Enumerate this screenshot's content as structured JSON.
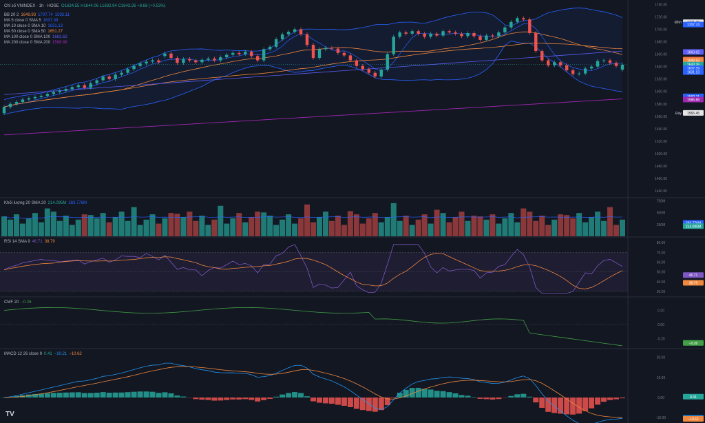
{
  "header": {
    "symbol": "Chỉ số VNINDEX · 1h · HOSE",
    "open": "O1634.55",
    "high": "H1644.06",
    "low": "L1632.94",
    "close": "C1643.26",
    "change": "+8.68 (+0.53%)"
  },
  "main_legend": [
    {
      "label": "BB 20 2",
      "values": [
        "1649.93",
        "1707.74",
        "1592.11"
      ],
      "colors": [
        "#f0883e",
        "#2962ff",
        "#2962ff"
      ]
    },
    {
      "label": "MA 5 close 0 SMA 5",
      "values": [
        "1637.39"
      ],
      "colors": [
        "#2962ff"
      ]
    },
    {
      "label": "MA 10 close 0 SMA 10",
      "values": [
        "1631.13"
      ],
      "colors": [
        "#2962ff"
      ]
    },
    {
      "label": "MA 50 close 0 SMA 50",
      "values": [
        "1651.27"
      ],
      "colors": [
        "#f0883e"
      ]
    },
    {
      "label": "MA 100 close 0 SMA 100",
      "values": [
        "1663.62"
      ],
      "colors": [
        "#5b5ef6"
      ]
    },
    {
      "label": "MA 200 close 0 SMA 200",
      "values": [
        "1586.88"
      ],
      "colors": [
        "#9c27b0"
      ]
    }
  ],
  "volume_legend": {
    "label": "Khối lượng 20 SMA 20",
    "v1": "214.095M",
    "v2": "283.776M"
  },
  "rsi_legend": {
    "label": "RSI 14 SMA 9",
    "v1": "46.71",
    "v2": "38.79"
  },
  "cmf_legend": {
    "label": "CMF 20",
    "v1": "−0.26"
  },
  "macd_legend": {
    "label": "MACD 12 26 close 9",
    "v1": "0.41",
    "v2": "−10.21",
    "v3": "−10.62"
  },
  "colors": {
    "up": "#26a69a",
    "down": "#ef5350",
    "bb": "#2962ff",
    "orange": "#f0883e",
    "purple": "#9c27b0",
    "ma100": "#5b5ef6",
    "rsi": "#7e57c2",
    "cmf": "#43a047",
    "macd": "#2196f3"
  },
  "chart_data": [
    {
      "type": "candlestick",
      "name": "VNINDEX 1h",
      "ylim": [
        1430,
        1745
      ],
      "yticks": [
        "1740.00",
        "1720.00",
        "1700.00",
        "1680.00",
        "1660.00",
        "1640.00",
        "1620.00",
        "1600.00",
        "1580.00",
        "1560.00",
        "1540.00",
        "1520.00",
        "1500.00",
        "1480.00",
        "1460.00",
        "1440.00"
      ],
      "close": [
        1575,
        1580,
        1583,
        1587,
        1589,
        1591,
        1593,
        1596,
        1599,
        1601,
        1604,
        1607,
        1610,
        1606,
        1613,
        1618,
        1624,
        1620,
        1627,
        1630,
        1636,
        1641,
        1645,
        1648,
        1650,
        1647,
        1661,
        1654,
        1646,
        1652,
        1650,
        1647,
        1651,
        1653,
        1650,
        1655,
        1659,
        1662,
        1660,
        1664,
        1657,
        1650,
        1668,
        1672,
        1684,
        1692,
        1696,
        1700,
        1692,
        1675,
        1654,
        1668,
        1670,
        1669,
        1662,
        1658,
        1650,
        1641,
        1636,
        1630,
        1624,
        1635,
        1660,
        1688,
        1695,
        1693,
        1697,
        1693,
        1688,
        1693,
        1690,
        1697,
        1695,
        1693,
        1689,
        1694,
        1689,
        1683,
        1690,
        1689,
        1695,
        1703,
        1712,
        1718,
        1716,
        1694,
        1665,
        1650,
        1642,
        1647,
        1642,
        1634,
        1628,
        1629,
        1637,
        1640,
        1649,
        1650,
        1646,
        1641,
        1643
      ],
      "open": [
        1565,
        1575,
        1580,
        1583,
        1587,
        1589,
        1591,
        1593,
        1596,
        1599,
        1601,
        1604,
        1607,
        1610,
        1606,
        1613,
        1618,
        1624,
        1620,
        1627,
        1630,
        1636,
        1641,
        1645,
        1648,
        1650,
        1657,
        1661,
        1654,
        1646,
        1652,
        1650,
        1647,
        1651,
        1653,
        1650,
        1655,
        1659,
        1662,
        1660,
        1664,
        1657,
        1650,
        1668,
        1672,
        1684,
        1692,
        1696,
        1700,
        1692,
        1675,
        1654,
        1668,
        1670,
        1669,
        1662,
        1658,
        1650,
        1641,
        1636,
        1630,
        1624,
        1635,
        1660,
        1688,
        1695,
        1693,
        1697,
        1693,
        1688,
        1693,
        1690,
        1697,
        1695,
        1693,
        1689,
        1694,
        1689,
        1683,
        1690,
        1689,
        1695,
        1703,
        1712,
        1718,
        1716,
        1694,
        1665,
        1650,
        1642,
        1647,
        1642,
        1634,
        1628,
        1629,
        1637,
        1640,
        1649,
        1650,
        1646,
        1635
      ],
      "current_label": "1643.26",
      "right_labels": [
        {
          "text": "1711.49",
          "title": "Đỉnh",
          "value": 1711.49,
          "bg": "#e6e6e6",
          "fg": "#131722"
        },
        {
          "text": "1707.74",
          "value": 1707.74,
          "bg": "#2962ff",
          "fg": "#ffffff"
        },
        {
          "text": "1663.62",
          "value": 1663.62,
          "bg": "#5b5ef6",
          "fg": "#ffffff"
        },
        {
          "text": "1651.27",
          "value": 1651.27,
          "bg": "#ef6c4a",
          "fg": "#ffffff"
        },
        {
          "text": "1649.93",
          "value": 1649.93,
          "bg": "#f0883e",
          "fg": "#ffffff"
        },
        {
          "text": "1643.26",
          "value": 1643.26,
          "bg": "#26a69a",
          "fg": "#ffffff"
        },
        {
          "text": "1637.39",
          "value": 1637.39,
          "bg": "#2962ff",
          "fg": "#ffffff"
        },
        {
          "text": "1631.13",
          "value": 1631.13,
          "bg": "#2962ff",
          "fg": "#ffffff"
        },
        {
          "text": "1592.11",
          "value": 1592.11,
          "bg": "#2962ff",
          "fg": "#ffffff"
        },
        {
          "text": "1586.88",
          "value": 1586.88,
          "bg": "#9c27b0",
          "fg": "#ffffff"
        },
        {
          "text": "1565.45",
          "title": "Đáy",
          "value": 1565.45,
          "bg": "#e6e6e6",
          "fg": "#131722"
        }
      ]
    },
    {
      "type": "bar",
      "name": "Khối lượng",
      "ylim": [
        0,
        800
      ],
      "yticks": [
        "750M",
        "500M",
        "250M"
      ],
      "right_labels": [
        {
          "text": "283.776M",
          "value": 283.776,
          "bg": "#2962ff",
          "fg": "#ffffff"
        },
        {
          "text": "214.095M",
          "value": 214.095,
          "bg": "#26a69a",
          "fg": "#ffffff"
        }
      ]
    },
    {
      "type": "line",
      "name": "RSI",
      "ylim": [
        25,
        85
      ],
      "yticks": [
        "80.00",
        "70.00",
        "60.00",
        "50.00",
        "40.00",
        "30.00"
      ],
      "bands": [
        30,
        70
      ],
      "right_labels": [
        {
          "text": "46.71",
          "value": 46.71,
          "bg": "#7e57c2",
          "fg": "#ffffff"
        },
        {
          "text": "38.79",
          "value": 38.79,
          "bg": "#f0883e",
          "fg": "#ffffff"
        }
      ]
    },
    {
      "type": "line",
      "name": "CMF",
      "ylim": [
        -0.33,
        0.38
      ],
      "yticks": [
        "0.20",
        "0.00",
        "-0.20"
      ],
      "right_labels": [
        {
          "text": "−0.26",
          "value": -0.26,
          "bg": "#43a047",
          "fg": "#ffffff"
        }
      ]
    },
    {
      "type": "line",
      "name": "MACD",
      "ylim": [
        -12,
        24
      ],
      "yticks": [
        "20.00",
        "10.00",
        "0.00",
        "-10.00"
      ],
      "right_labels": [
        {
          "text": "0.41",
          "value": 0.41,
          "bg": "#26a69a",
          "fg": "#ffffff"
        },
        {
          "text": "−10.21",
          "value": -10.21,
          "bg": "#2196f3",
          "fg": "#ffffff"
        },
        {
          "text": "−10.62",
          "value": -10.62,
          "bg": "#f0883e",
          "fg": "#ffffff"
        }
      ]
    }
  ]
}
